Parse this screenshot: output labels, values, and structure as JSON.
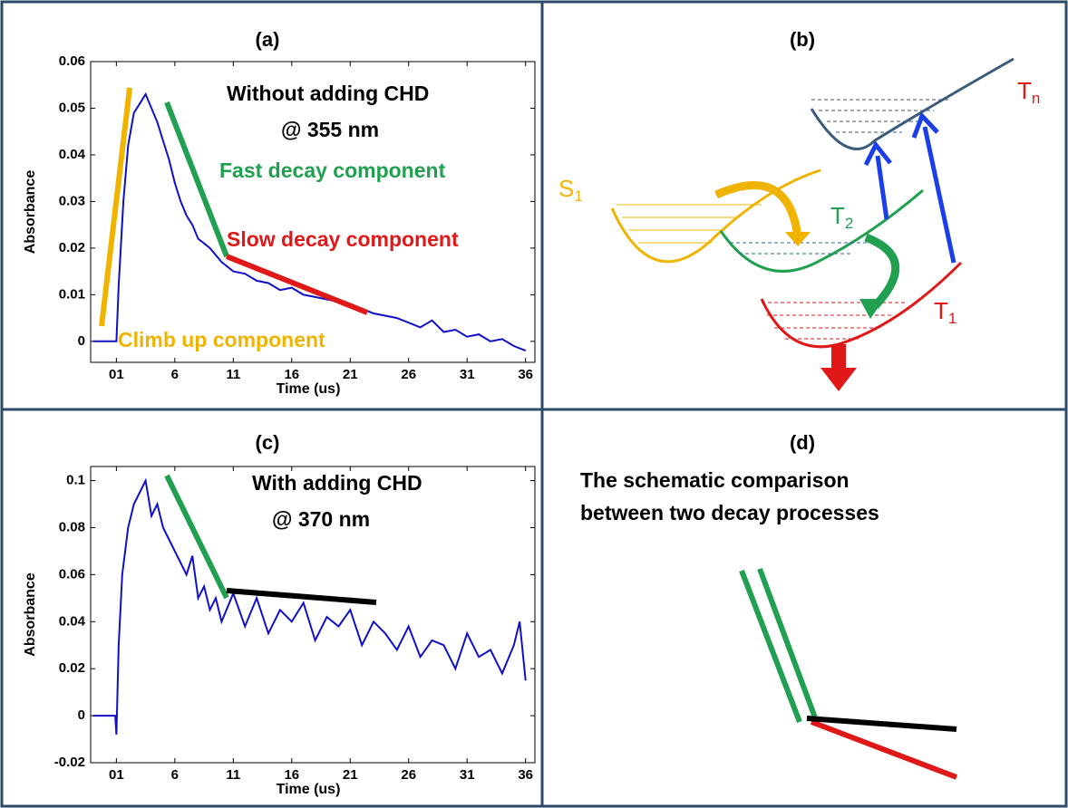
{
  "chart_data": [
    {
      "type": "line",
      "title": "(a)",
      "x_label": "Time (us)",
      "y_label": "Absorbance",
      "color": "#1010c8",
      "xlim": [
        -1.2,
        36.8
      ],
      "ylim": [
        -0.0045,
        0.06
      ],
      "xticks": [
        {
          "value": 1,
          "label": "01"
        },
        6,
        11,
        16,
        21,
        26,
        31,
        36
      ],
      "yticks": [
        0,
        0.01,
        0.02,
        0.03,
        0.04,
        0.05,
        0.06
      ],
      "x": [
        -1,
        0,
        1,
        1.2,
        1.6,
        2,
        2.5,
        3,
        3.5,
        4,
        4.5,
        5,
        5.5,
        6,
        6.5,
        7,
        7.5,
        8,
        8.5,
        9,
        10,
        11,
        12,
        13,
        14,
        15,
        16,
        17,
        18,
        19,
        20,
        21,
        22,
        23,
        24,
        25,
        26,
        27,
        28,
        29,
        30,
        31,
        32,
        33,
        34,
        35,
        36
      ],
      "values": [
        0,
        0,
        0,
        0.012,
        0.03,
        0.042,
        0.049,
        0.051,
        0.053,
        0.05,
        0.047,
        0.043,
        0.039,
        0.034,
        0.03,
        0.027,
        0.025,
        0.022,
        0.021,
        0.02,
        0.017,
        0.015,
        0.0145,
        0.013,
        0.0125,
        0.011,
        0.0115,
        0.01,
        0.0095,
        0.009,
        0.0085,
        0.0075,
        0.007,
        0.006,
        0.0055,
        0.005,
        0.004,
        0.003,
        0.0045,
        0.002,
        0.0025,
        0.001,
        0.0015,
        0,
        0.0005,
        -0.001,
        -0.002
      ],
      "annotations": [
        {
          "text": "Without adding CHD",
          "color": "#000000"
        },
        {
          "text": "@ 355 nm",
          "color": "#000000"
        },
        {
          "text": "Fast decay component",
          "color": "#20a050"
        },
        {
          "text": "Slow decay component",
          "color": "#e01818"
        },
        {
          "text": "Climb up component",
          "color": "#f0b400"
        }
      ]
    },
    {
      "type": "line",
      "title": "(c)",
      "x_label": "Time (us)",
      "y_label": "Absorbance",
      "color": "#1010c8",
      "xlim": [
        -1.2,
        36.8
      ],
      "ylim": [
        -0.02,
        0.106
      ],
      "xticks": [
        {
          "value": 1,
          "label": "01"
        },
        6,
        11,
        16,
        21,
        26,
        31,
        36
      ],
      "yticks": [
        -0.02,
        0,
        0.02,
        0.04,
        0.06,
        0.08,
        0.1
      ],
      "x": [
        -1,
        0,
        0.9,
        1,
        1.2,
        1.5,
        2,
        2.5,
        3,
        3.5,
        4,
        4.5,
        5,
        5.5,
        6,
        6.5,
        7,
        7.5,
        8,
        8.5,
        9,
        9.5,
        10,
        11,
        12,
        13,
        14,
        15,
        16,
        17,
        18,
        19,
        20,
        21,
        22,
        23,
        24,
        25,
        26,
        27,
        28,
        29,
        30,
        31,
        32,
        33,
        34,
        35,
        35.5,
        36
      ],
      "values": [
        0,
        0,
        0,
        -0.008,
        0.03,
        0.06,
        0.08,
        0.09,
        0.095,
        0.1,
        0.085,
        0.09,
        0.08,
        0.075,
        0.07,
        0.065,
        0.06,
        0.068,
        0.05,
        0.055,
        0.045,
        0.05,
        0.04,
        0.052,
        0.038,
        0.05,
        0.035,
        0.045,
        0.04,
        0.048,
        0.032,
        0.042,
        0.038,
        0.045,
        0.03,
        0.04,
        0.035,
        0.028,
        0.038,
        0.025,
        0.032,
        0.03,
        0.02,
        0.035,
        0.025,
        0.028,
        0.018,
        0.03,
        0.04,
        0.015
      ],
      "annotations": [
        {
          "text": "With adding CHD",
          "color": "#000000"
        },
        {
          "text": "@ 370 nm",
          "color": "#000000"
        }
      ]
    }
  ],
  "diagram_b": {
    "title": "(b)",
    "labels": [
      {
        "letter": "S",
        "sub": "1"
      },
      {
        "letter": "T",
        "sub": "2"
      },
      {
        "letter": "T",
        "sub": "n"
      },
      {
        "letter": "T",
        "sub": "1"
      }
    ]
  },
  "diagram_d": {
    "title": "(d)",
    "lines": [
      "The schematic comparison",
      "between two  decay processes"
    ]
  }
}
